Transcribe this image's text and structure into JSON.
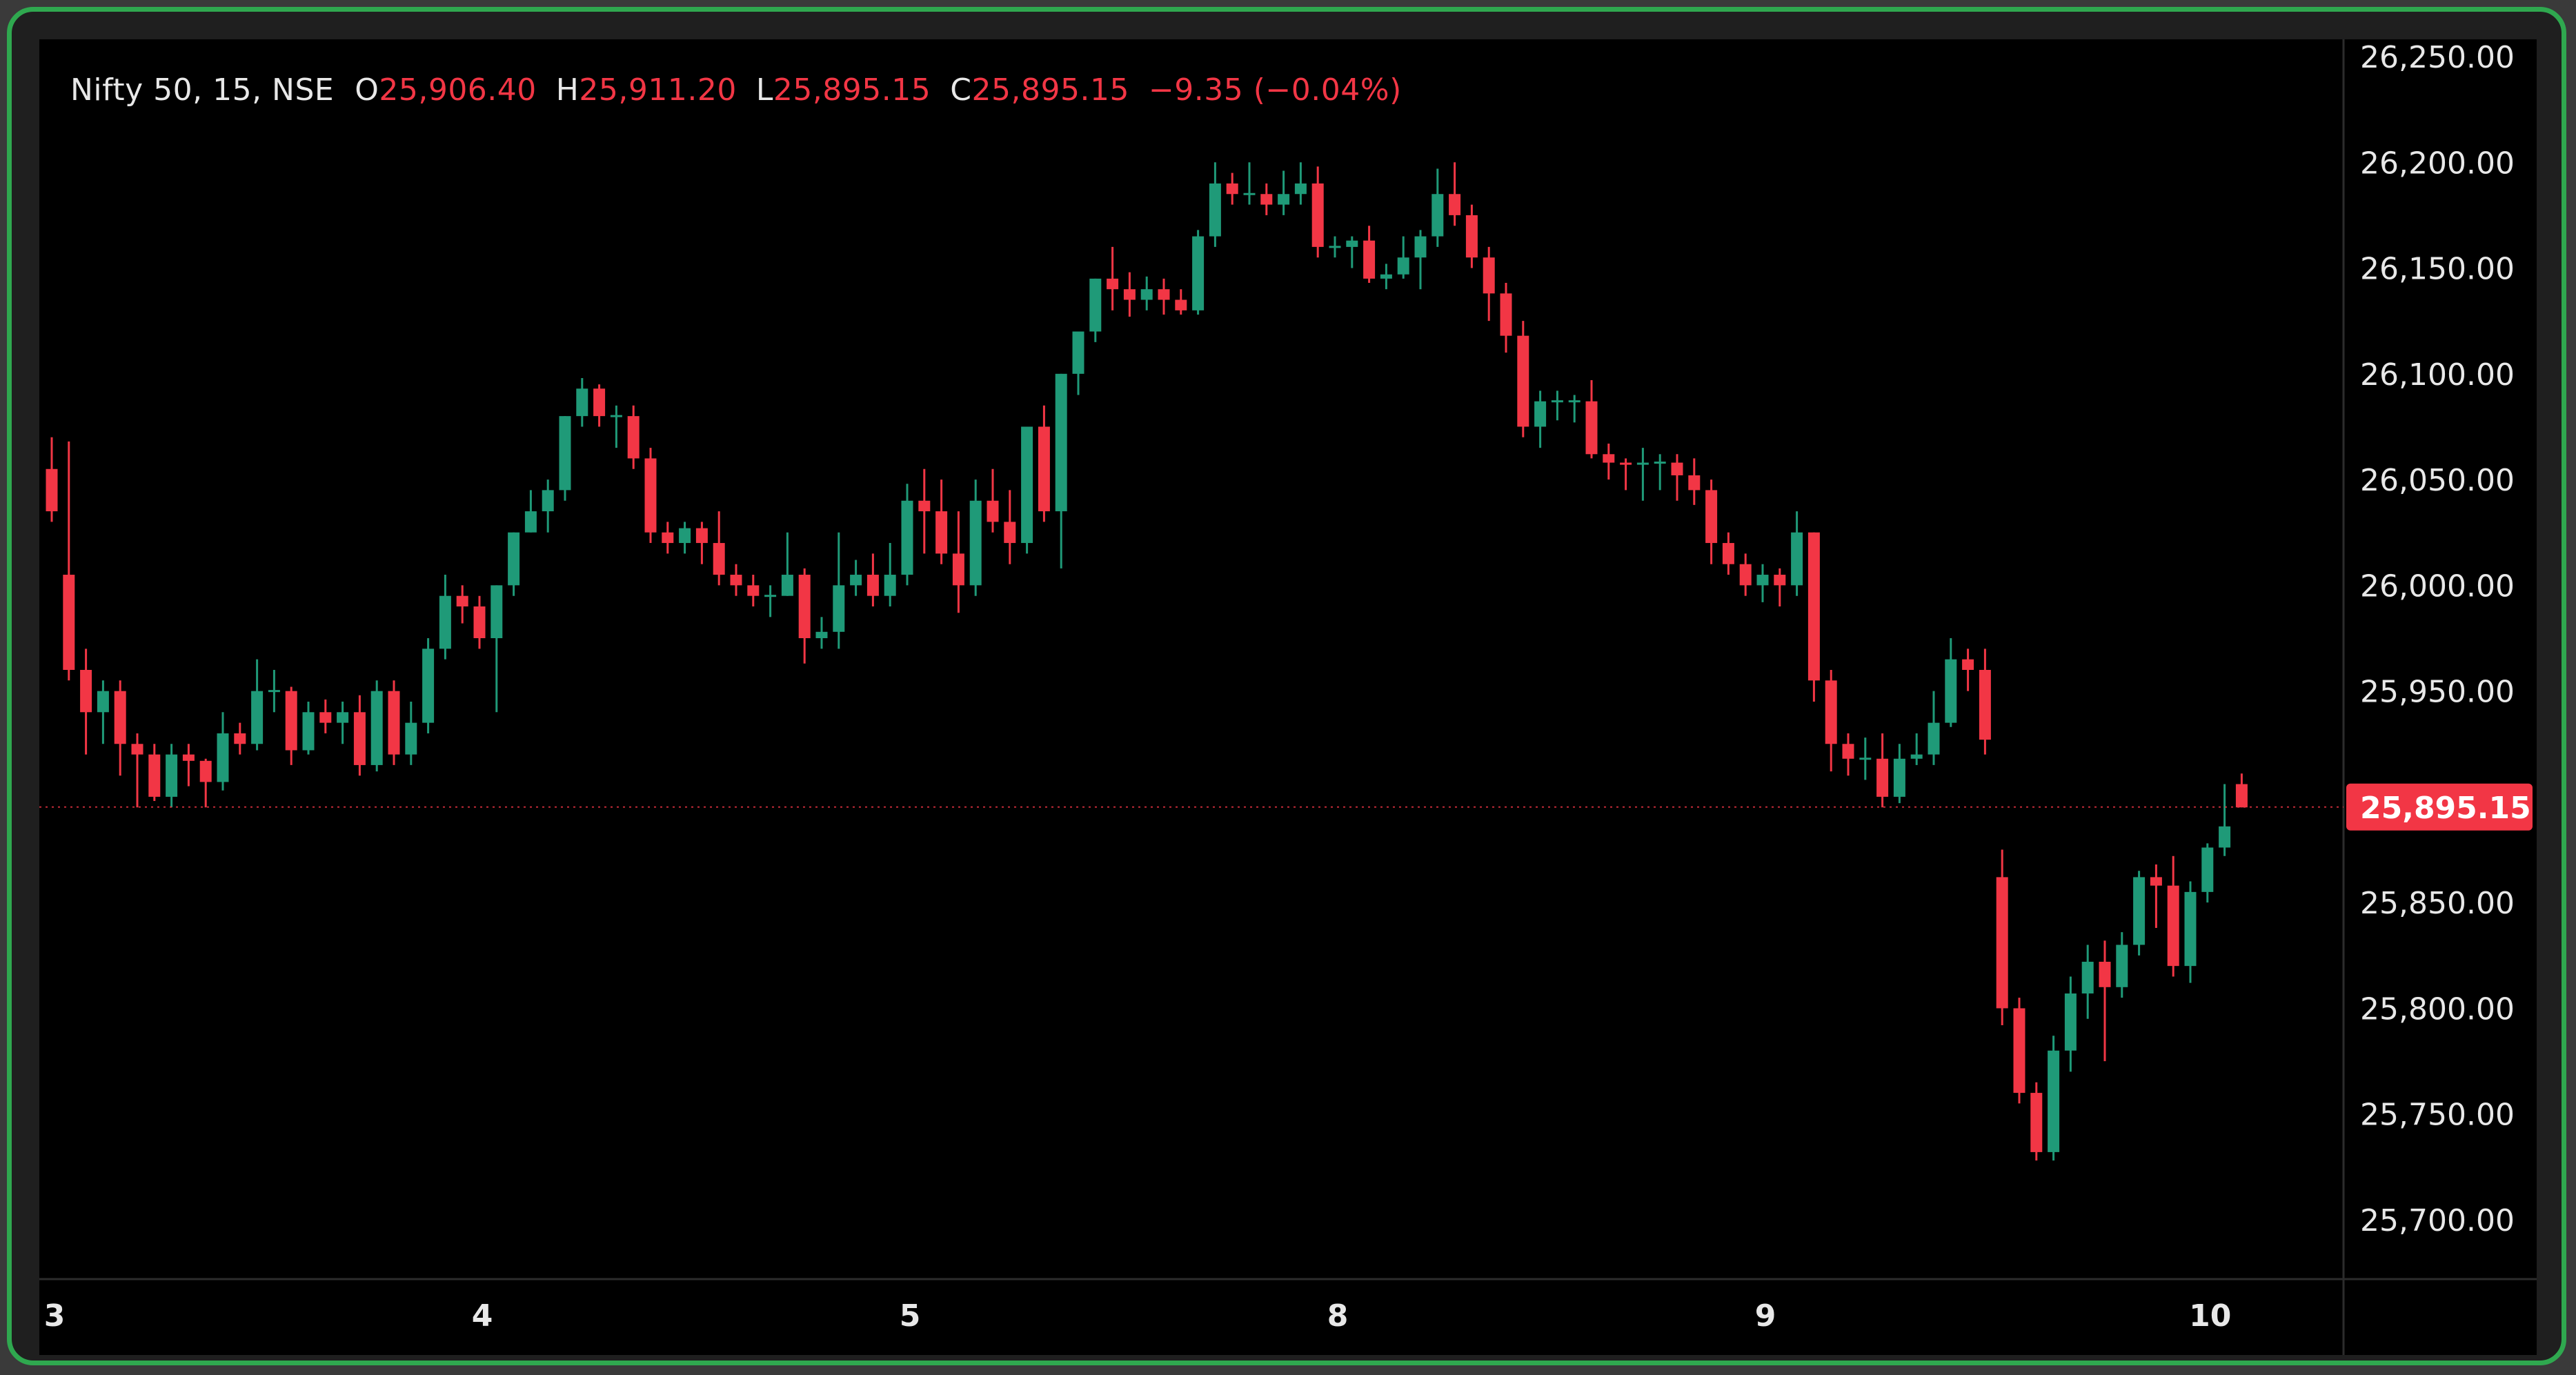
{
  "header": {
    "symbol": "Nifty 50, 15, NSE",
    "open_label": "O",
    "open_value": "25,906.40",
    "high_label": "H",
    "high_value": "25,911.20",
    "low_label": "L",
    "low_value": "25,895.15",
    "close_label": "C",
    "close_value": "25,895.15",
    "change": "−9.35 (−0.04%)"
  },
  "colors": {
    "up": "#1f9a78",
    "down": "#f23645",
    "background": "#000000",
    "frame": "#2fa84f",
    "price_tag": "#f23645",
    "text": "#e8e8e8"
  },
  "price_tag": {
    "label": "25,895.15",
    "value": 25895.15
  },
  "chart_data": {
    "type": "candlestick",
    "title": "",
    "ylim": [
      25700,
      26250
    ],
    "yticks": [
      "26,250.00",
      "26,200.00",
      "26,150.00",
      "26,100.00",
      "26,050.00",
      "26,000.00",
      "25,950.00",
      "25,900.00",
      "25,850.00",
      "25,800.00",
      "25,750.00",
      "25,700.00"
    ],
    "ytick_values": [
      26250,
      26200,
      26150,
      26100,
      26050,
      26000,
      25950,
      25900,
      25850,
      25800,
      25750,
      25700
    ],
    "xticks": [
      "3",
      "4",
      "5",
      "8",
      "9",
      "10"
    ],
    "xtick_positions": [
      0.5,
      25.5,
      50.5,
      75.5,
      100.5,
      126.5
    ],
    "grid": false,
    "current_price": 25895.15,
    "candles": [
      [
        26055,
        26035,
        26070,
        26030
      ],
      [
        26005,
        25960,
        26068,
        25955
      ],
      [
        25960,
        25940,
        25970,
        25920
      ],
      [
        25940,
        25950,
        25955,
        25925
      ],
      [
        25950,
        25925,
        25955,
        25910
      ],
      [
        25925,
        25920,
        25930,
        25895
      ],
      [
        25920,
        25900,
        25925,
        25898
      ],
      [
        25900,
        25920,
        25925,
        25895
      ],
      [
        25920,
        25917,
        25925,
        25905
      ],
      [
        25917,
        25907,
        25918,
        25895
      ],
      [
        25907,
        25930,
        25940,
        25903
      ],
      [
        25930,
        25925,
        25935,
        25920
      ],
      [
        25925,
        25950,
        25965,
        25922
      ],
      [
        25950,
        25950,
        25960,
        25940
      ],
      [
        25950,
        25922,
        25952,
        25915
      ],
      [
        25922,
        25940,
        25945,
        25920
      ],
      [
        25940,
        25935,
        25946,
        25930
      ],
      [
        25935,
        25940,
        25945,
        25925
      ],
      [
        25940,
        25915,
        25948,
        25910
      ],
      [
        25915,
        25950,
        25955,
        25912
      ],
      [
        25950,
        25920,
        25955,
        25915
      ],
      [
        25920,
        25935,
        25945,
        25915
      ],
      [
        25935,
        25970,
        25975,
        25930
      ],
      [
        25970,
        25995,
        26005,
        25965
      ],
      [
        25995,
        25990,
        26000,
        25982
      ],
      [
        25990,
        25975,
        25995,
        25970
      ],
      [
        25975,
        26000,
        26000,
        25940
      ],
      [
        26000,
        26025,
        26025,
        25995
      ],
      [
        26025,
        26035,
        26045,
        26025
      ],
      [
        26035,
        26045,
        26050,
        26025
      ],
      [
        26045,
        26080,
        26080,
        26040
      ],
      [
        26080,
        26093,
        26098,
        26075
      ],
      [
        26093,
        26080,
        26095,
        26075
      ],
      [
        26080,
        26080,
        26085,
        26065
      ],
      [
        26080,
        26060,
        26085,
        26055
      ],
      [
        26060,
        26025,
        26065,
        26020
      ],
      [
        26025,
        26020,
        26030,
        26015
      ],
      [
        26020,
        26027,
        26030,
        26015
      ],
      [
        26027,
        26020,
        26030,
        26010
      ],
      [
        26020,
        26005,
        26035,
        26000
      ],
      [
        26005,
        26000,
        26010,
        25995
      ],
      [
        26000,
        25995,
        26005,
        25990
      ],
      [
        25995,
        25995,
        26000,
        25985
      ],
      [
        25995,
        26005,
        26025,
        25995
      ],
      [
        26005,
        25975,
        26008,
        25963
      ],
      [
        25975,
        25978,
        25985,
        25970
      ],
      [
        25978,
        26000,
        26025,
        25970
      ],
      [
        26000,
        26005,
        26012,
        25995
      ],
      [
        26005,
        25995,
        26015,
        25990
      ],
      [
        25995,
        26005,
        26020,
        25990
      ],
      [
        26005,
        26040,
        26048,
        26000
      ],
      [
        26040,
        26035,
        26055,
        26015
      ],
      [
        26035,
        26015,
        26050,
        26010
      ],
      [
        26015,
        26000,
        26035,
        25987
      ],
      [
        26000,
        26040,
        26050,
        25995
      ],
      [
        26040,
        26030,
        26055,
        26025
      ],
      [
        26030,
        26020,
        26045,
        26010
      ],
      [
        26020,
        26075,
        26075,
        26015
      ],
      [
        26075,
        26035,
        26085,
        26030
      ],
      [
        26035,
        26100,
        26100,
        26008
      ],
      [
        26100,
        26120,
        26120,
        26090
      ],
      [
        26120,
        26145,
        26145,
        26115
      ],
      [
        26145,
        26140,
        26160,
        26130
      ],
      [
        26140,
        26135,
        26148,
        26127
      ],
      [
        26135,
        26140,
        26146,
        26130
      ],
      [
        26140,
        26135,
        26145,
        26128
      ],
      [
        26135,
        26130,
        26140,
        26128
      ],
      [
        26130,
        26165,
        26168,
        26128
      ],
      [
        26165,
        26190,
        26200,
        26160
      ],
      [
        26190,
        26185,
        26195,
        26180
      ],
      [
        26185,
        26185,
        26200,
        26180
      ],
      [
        26185,
        26180,
        26190,
        26175
      ],
      [
        26180,
        26185,
        26196,
        26175
      ],
      [
        26185,
        26190,
        26200,
        26180
      ],
      [
        26190,
        26160,
        26198,
        26155
      ],
      [
        26160,
        26160,
        26165,
        26155
      ],
      [
        26160,
        26163,
        26165,
        26150
      ],
      [
        26163,
        26145,
        26170,
        26143
      ],
      [
        26145,
        26147,
        26152,
        26140
      ],
      [
        26147,
        26155,
        26165,
        26145
      ],
      [
        26155,
        26165,
        26168,
        26140
      ],
      [
        26165,
        26185,
        26197,
        26160
      ],
      [
        26185,
        26175,
        26200,
        26170
      ],
      [
        26175,
        26155,
        26180,
        26150
      ],
      [
        26155,
        26138,
        26160,
        26125
      ],
      [
        26138,
        26118,
        26143,
        26110
      ],
      [
        26118,
        26075,
        26125,
        26070
      ],
      [
        26075,
        26087,
        26092,
        26065
      ],
      [
        26087,
        26087,
        26092,
        26078
      ],
      [
        26087,
        26087,
        26090,
        26077
      ],
      [
        26087,
        26062,
        26097,
        26060
      ],
      [
        26062,
        26058,
        26067,
        26050
      ],
      [
        26058,
        26057,
        26060,
        26045
      ],
      [
        26057,
        26058,
        26065,
        26040
      ],
      [
        26058,
        26058,
        26062,
        26045
      ],
      [
        26058,
        26052,
        26062,
        26040
      ],
      [
        26052,
        26045,
        26060,
        26038
      ],
      [
        26045,
        26020,
        26050,
        26010
      ],
      [
        26020,
        26010,
        26025,
        26005
      ],
      [
        26010,
        26000,
        26015,
        25995
      ],
      [
        26000,
        26005,
        26010,
        25992
      ],
      [
        26005,
        26000,
        26008,
        25990
      ],
      [
        26000,
        26025,
        26035,
        25995
      ],
      [
        26025,
        25955,
        26025,
        25945
      ],
      [
        25955,
        25925,
        25960,
        25912
      ],
      [
        25925,
        25918,
        25930,
        25910
      ],
      [
        25918,
        25918,
        25928,
        25908
      ],
      [
        25918,
        25900,
        25930,
        25895
      ],
      [
        25900,
        25918,
        25925,
        25897
      ],
      [
        25918,
        25920,
        25930,
        25915
      ],
      [
        25920,
        25935,
        25950,
        25915
      ],
      [
        25935,
        25965,
        25975,
        25933
      ],
      [
        25965,
        25960,
        25970,
        25950
      ],
      [
        25960,
        25927,
        25970,
        25920
      ],
      [
        25862,
        25800,
        25875,
        25792
      ],
      [
        25800,
        25760,
        25805,
        25755
      ],
      [
        25760,
        25732,
        25765,
        25728
      ],
      [
        25732,
        25780,
        25787,
        25728
      ],
      [
        25780,
        25807,
        25815,
        25770
      ],
      [
        25807,
        25822,
        25830,
        25795
      ],
      [
        25822,
        25810,
        25832,
        25775
      ],
      [
        25810,
        25830,
        25836,
        25805
      ],
      [
        25830,
        25862,
        25865,
        25825
      ],
      [
        25862,
        25858,
        25868,
        25838
      ],
      [
        25858,
        25820,
        25872,
        25815
      ],
      [
        25820,
        25855,
        25860,
        25812
      ],
      [
        25855,
        25876,
        25878,
        25850
      ],
      [
        25876,
        25886,
        25906,
        25872
      ],
      [
        25906,
        25895,
        25911,
        25895
      ]
    ]
  }
}
